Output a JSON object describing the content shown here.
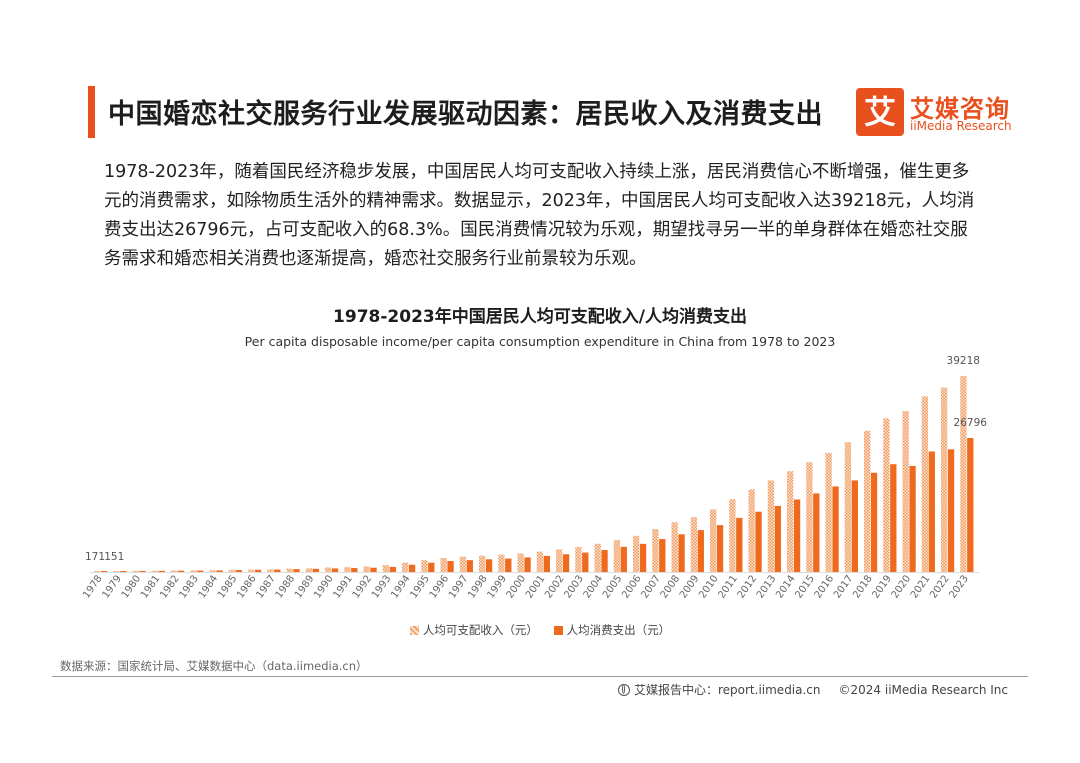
{
  "header": {
    "title": "中国婚恋社交服务行业发展驱动因素：居民收入及消费支出",
    "logo": {
      "cn": "艾媒咨询",
      "en": "iiMedia Research",
      "mark": "艾"
    }
  },
  "body": {
    "paragraph": "1978-2023年，随着国民经济稳步发展，中国居民人均可支配收入持续上涨，居民消费信心不断增强，催生更多元的消费需求，如除物质生活外的精神需求。数据显示，2023年，中国居民人均可支配收入达39218元，人均消费支出达26796元，占可支配收入的68.3%。国民消费情况较为乐观，期望找寻另一半的单身群体在婚恋社交服务需求和婚恋相关消费也逐渐提高，婚恋社交服务行业前景较为乐观。"
  },
  "chart_data": {
    "type": "bar",
    "title": "1978-2023年中国居民人均可支配收入/人均消费支出",
    "subtitle": "Per capita disposable income/per capita consumption expenditure in China from 1978 to 2023",
    "categories": [
      "1978",
      "1979",
      "1980",
      "1981",
      "1982",
      "1983",
      "1984",
      "1985",
      "1986",
      "1987",
      "1988",
      "1989",
      "1990",
      "1991",
      "1992",
      "1993",
      "1994",
      "1995",
      "1996",
      "1997",
      "1998",
      "1999",
      "2000",
      "2001",
      "2002",
      "2003",
      "2004",
      "2005",
      "2006",
      "2007",
      "2008",
      "2009",
      "2010",
      "2011",
      "2012",
      "2013",
      "2014",
      "2015",
      "2016",
      "2017",
      "2018",
      "2019",
      "2020",
      "2021",
      "2022",
      "2023"
    ],
    "series": [
      {
        "name": "人均可支配收入（元）",
        "color": "#f3a066",
        "pattern": "hatched",
        "values": [
          171,
          210,
          247,
          271,
          306,
          330,
          367,
          446,
          496,
          546,
          661,
          732,
          904,
          976,
          1125,
          1385,
          1870,
          2363,
          2814,
          3070,
          3254,
          3485,
          3721,
          4070,
          4532,
          5007,
          5661,
          6385,
          7229,
          8584,
          9957,
          10977,
          12520,
          14551,
          16510,
          18311,
          20167,
          21966,
          23821,
          25974,
          28228,
          30733,
          32189,
          35128,
          36883,
          39218
        ]
      },
      {
        "name": "人均消费支出（元）",
        "color": "#ee6a1f",
        "pattern": "solid",
        "values": [
          151,
          180,
          210,
          230,
          260,
          290,
          320,
          390,
          440,
          490,
          580,
          640,
          720,
          790,
          860,
          1020,
          1450,
          1850,
          2200,
          2370,
          2540,
          2690,
          2910,
          3230,
          3548,
          3889,
          4395,
          5035,
          5634,
          6592,
          7548,
          8377,
          9378,
          10820,
          12054,
          13220,
          14491,
          15712,
          17111,
          18322,
          19853,
          21559,
          21210,
          24100,
          24538,
          26796
        ]
      }
    ],
    "data_labels": {
      "first_income": "171",
      "first_consumption": "151",
      "last_income": "39218",
      "last_consumption": "26796"
    },
    "xlabel": "",
    "ylabel": "",
    "ylim": [
      0,
      40000
    ],
    "grid": false,
    "legend": "bottom-center"
  },
  "footer": {
    "source": "数据来源：国家统计局、艾媒数据中心（data.iimedia.cn）",
    "report_center": "艾媒报告中心：report.iimedia.cn",
    "copyright": "©2024  iiMedia Research Inc"
  }
}
